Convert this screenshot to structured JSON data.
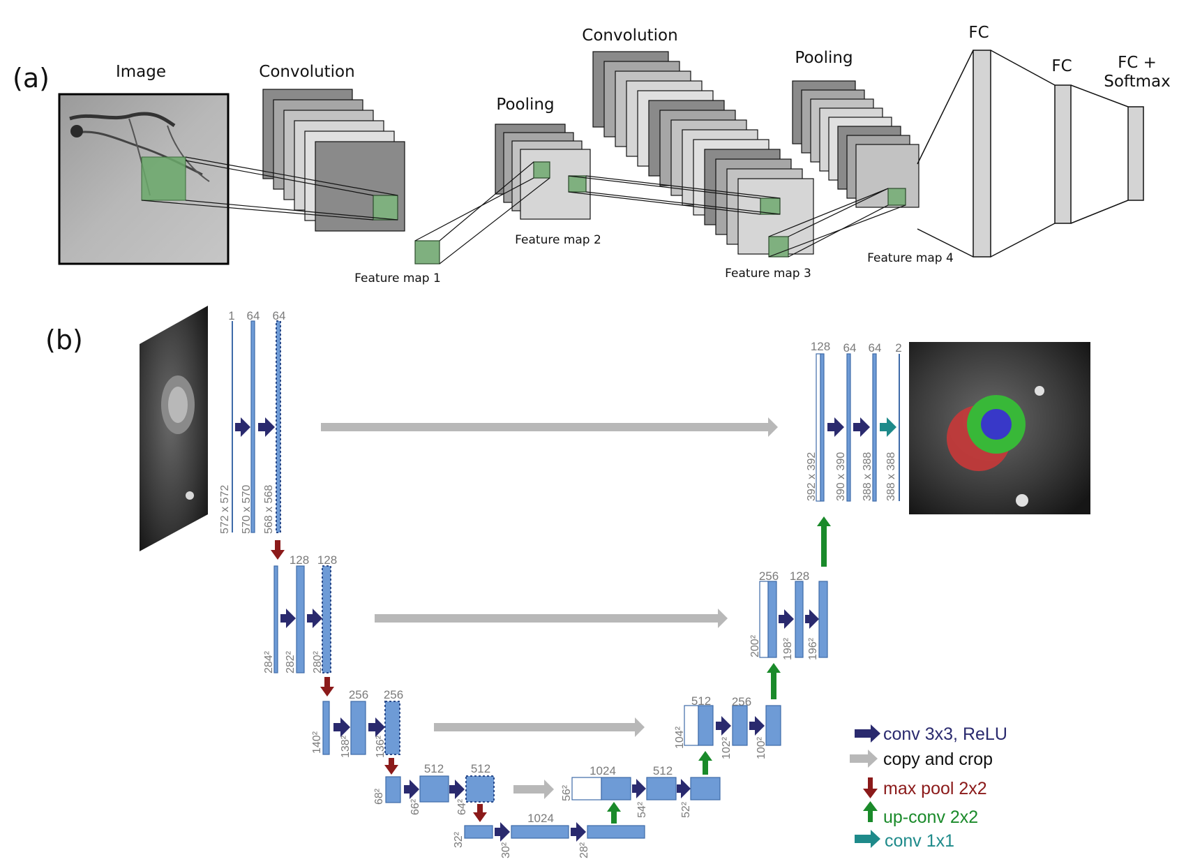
{
  "panel_a": {
    "label": "(a)",
    "image_label": "Image",
    "conv1_label": "Convolution",
    "pool1_label": "Pooling",
    "conv2_label": "Convolution",
    "pool2_label": "Pooling",
    "fc1_label": "FC",
    "fc2_label": "FC",
    "fc3_label_line1": "FC +",
    "fc3_label_line2": "Softmax",
    "fm1": "Feature map 1",
    "fm2": "Feature map 2",
    "fm3": "Feature map 3",
    "fm4": "Feature map 4"
  },
  "panel_b": {
    "label": "(b)",
    "l1": {
      "ch_in": "1",
      "ch_a": "64",
      "ch_b": "64",
      "dim_in": "572 x 572",
      "dim_a": "570 x 570",
      "dim_b": "568 x 568"
    },
    "l2": {
      "ch_a": "128",
      "ch_b": "128",
      "dim_in": "284²",
      "dim_a": "282²",
      "dim_b": "280²"
    },
    "l3": {
      "ch_a": "256",
      "ch_b": "256",
      "dim_in": "140²",
      "dim_a": "138²",
      "dim_b": "136²"
    },
    "l4": {
      "ch_a": "512",
      "ch_b": "512",
      "dim_in": "68²",
      "dim_a": "66²",
      "dim_b": "64²"
    },
    "l5": {
      "ch": "1024",
      "dim_in": "32²",
      "dim_a": "30²",
      "dim_b": "28²"
    },
    "u4": {
      "ch_in": "1024",
      "ch_out": "512",
      "dim_in": "56²",
      "dim_a": "54²",
      "dim_b": "52²"
    },
    "u3": {
      "ch_in": "512",
      "ch_out": "256",
      "dim_in": "104²",
      "dim_a": "102²",
      "dim_b": "100²"
    },
    "u2": {
      "ch_in": "256",
      "ch_out": "128",
      "dim_in": "200²",
      "dim_a": "198²",
      "dim_b": "196²"
    },
    "u1": {
      "ch_in": "128",
      "ch_a": "64",
      "ch_b": "64",
      "ch_out": "2",
      "dim_in": "392 x 392",
      "dim_a": "390 x 390",
      "dim_b": "388 x 388",
      "dim_out": "388 x 388"
    }
  },
  "legend": {
    "conv": "conv 3x3, ReLU",
    "copy": "copy and crop",
    "pool": "max pool 2x2",
    "up": "up-conv 2x2",
    "conv1": "conv 1x1"
  },
  "colors": {
    "conv_arrow": "#2a2a6e",
    "copy_arrow": "#b8b8b8",
    "pool_arrow": "#8b1a1a",
    "up_arrow": "#1a8a2a",
    "conv1_arrow": "#1e8a8a",
    "block_fill": "#6e9bd6",
    "block_stroke": "#3e6aa8",
    "patch": "#7fb07f"
  }
}
